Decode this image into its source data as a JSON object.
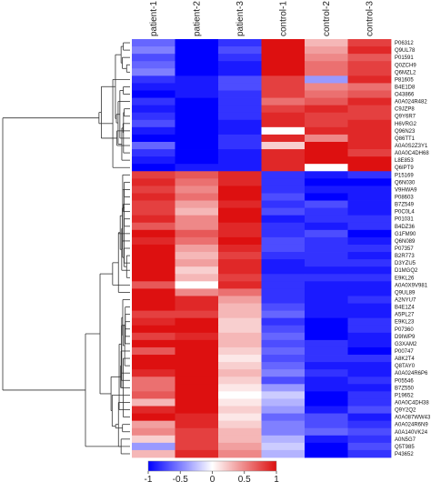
{
  "chart_data": {
    "type": "heatmap",
    "columns": [
      "patient-1",
      "patient-2",
      "patient-3",
      "control-1",
      "control-2",
      "control-3"
    ],
    "rows": [
      "P06312",
      "Q9UL78",
      "P01591",
      "Q0ZCH9",
      "Q6MZL2",
      "P81605",
      "B4E1D8",
      "O43866",
      "A0A024R482",
      "C9JZP8",
      "Q9Y6R7",
      "H6VRG2",
      "Q96N23",
      "Q86TT1",
      "A0A0S2Z3Y1",
      "A0A0C4DH68",
      "L8E853",
      "Q6IPT9",
      "P15169",
      "Q6N030",
      "V9HWA9",
      "P08603",
      "B7Z549",
      "P0C0L4",
      "P01031",
      "B4DZ36",
      "G1FM90",
      "Q6N089",
      "P07357",
      "B2R773",
      "D3YZU5",
      "D1MGQ2",
      "E9KL26",
      "A0A0X9V981",
      "Q9UL89",
      "A2NYU7",
      "B4E1Z4",
      "A5PL27",
      "E9KL23",
      "P07360",
      "D9IWP9",
      "G3XAM2",
      "P00747",
      "A8K2T4",
      "Q8TAY0",
      "A0A024R6P6",
      "P05546",
      "B7Z550",
      "P19652",
      "A0A0C4DH38",
      "Q9Y2Q2",
      "A0A087WW43",
      "A0A024R6N9",
      "A0A140VK24",
      "A0N5G7",
      "Q5T985",
      "P43652"
    ],
    "values": [
      [
        -0.6,
        -1.0,
        -0.8,
        1.0,
        0.3,
        0.8
      ],
      [
        -0.5,
        -1.0,
        -0.7,
        1.0,
        0.4,
        0.9
      ],
      [
        -0.7,
        -1.0,
        -0.8,
        1.0,
        0.5,
        0.7
      ],
      [
        -0.6,
        -1.0,
        -0.9,
        1.0,
        0.6,
        0.8
      ],
      [
        -0.5,
        -1.0,
        -0.9,
        1.0,
        0.6,
        0.8
      ],
      [
        -0.8,
        -0.9,
        -0.7,
        0.8,
        -0.4,
        0.9
      ],
      [
        -0.9,
        -0.9,
        -0.7,
        0.8,
        0.5,
        0.6
      ],
      [
        -1.0,
        -0.9,
        -0.8,
        0.8,
        0.6,
        0.7
      ],
      [
        -0.8,
        -1.0,
        -0.8,
        0.6,
        0.7,
        0.9
      ],
      [
        -0.9,
        -1.0,
        -0.8,
        0.8,
        0.9,
        0.8
      ],
      [
        -0.8,
        -1.0,
        -0.8,
        0.9,
        0.8,
        0.8
      ],
      [
        -0.7,
        -1.0,
        -0.9,
        0.9,
        0.8,
        0.9
      ],
      [
        -0.9,
        -1.0,
        -0.9,
        0.0,
        0.9,
        0.9
      ],
      [
        -1.0,
        -1.0,
        -0.8,
        0.9,
        0.5,
        0.9
      ],
      [
        -0.6,
        -1.0,
        -0.8,
        0.2,
        1.0,
        0.9
      ],
      [
        -0.8,
        -1.0,
        -0.9,
        0.9,
        1.0,
        0.8
      ],
      [
        -0.9,
        -1.0,
        -0.9,
        0.9,
        1.0,
        1.0
      ],
      [
        -1.0,
        -0.9,
        -0.9,
        0.9,
        0.0,
        1.0
      ],
      [
        0.8,
        0.7,
        0.9,
        -0.8,
        -0.9,
        -0.8
      ],
      [
        0.9,
        0.6,
        0.9,
        -0.8,
        -1.0,
        -1.0
      ],
      [
        0.8,
        0.5,
        1.0,
        -0.8,
        -0.9,
        -0.9
      ],
      [
        0.9,
        0.6,
        1.0,
        -0.7,
        -1.0,
        -0.9
      ],
      [
        0.8,
        0.4,
        0.9,
        -0.8,
        -0.7,
        -0.9
      ],
      [
        0.8,
        0.3,
        1.0,
        -0.7,
        -0.8,
        -0.9
      ],
      [
        0.9,
        0.5,
        1.0,
        -0.9,
        -0.8,
        -0.8
      ],
      [
        0.7,
        0.5,
        0.9,
        -0.8,
        -0.9,
        -0.8
      ],
      [
        1.0,
        0.7,
        0.9,
        -0.8,
        -0.7,
        -1.0
      ],
      [
        0.9,
        0.6,
        1.0,
        -0.7,
        -0.8,
        -0.9
      ],
      [
        1.0,
        0.4,
        0.9,
        -0.7,
        -0.8,
        -0.8
      ],
      [
        1.0,
        0.3,
        0.8,
        -0.8,
        -0.8,
        -0.9
      ],
      [
        1.0,
        0.4,
        0.9,
        -0.9,
        -0.8,
        -0.8
      ],
      [
        1.0,
        0.2,
        0.9,
        -0.9,
        -0.9,
        -0.9
      ],
      [
        1.0,
        0.3,
        0.8,
        -0.8,
        -0.8,
        -0.8
      ],
      [
        0.7,
        0.0,
        0.9,
        -0.8,
        -0.9,
        -0.9
      ],
      [
        1.0,
        0.5,
        0.6,
        -0.8,
        -0.9,
        -0.9
      ],
      [
        1.0,
        0.9,
        0.4,
        -0.8,
        -0.9,
        -0.8
      ],
      [
        1.0,
        0.9,
        0.3,
        -0.7,
        -0.9,
        -0.9
      ],
      [
        0.8,
        0.8,
        0.3,
        -0.6,
        -0.9,
        -0.9
      ],
      [
        0.9,
        1.0,
        0.2,
        -0.8,
        -1.0,
        -0.8
      ],
      [
        1.0,
        1.0,
        0.2,
        -0.7,
        -1.0,
        -0.8
      ],
      [
        0.8,
        0.9,
        0.3,
        -0.6,
        -1.0,
        -0.9
      ],
      [
        1.0,
        1.0,
        0.3,
        -0.7,
        -0.8,
        -0.9
      ],
      [
        0.7,
        1.0,
        0.2,
        -0.6,
        -0.8,
        -1.0
      ],
      [
        1.0,
        1.0,
        0.1,
        -0.7,
        -0.8,
        -0.8
      ],
      [
        1.0,
        1.0,
        0.2,
        -0.6,
        -0.9,
        -0.9
      ],
      [
        0.9,
        1.0,
        0.3,
        -0.5,
        -0.8,
        -0.9
      ],
      [
        0.6,
        1.0,
        0.2,
        -0.7,
        -0.9,
        -0.8
      ],
      [
        0.6,
        1.0,
        0.1,
        -0.4,
        -0.9,
        -0.9
      ],
      [
        0.7,
        1.0,
        0.0,
        -0.2,
        -1.0,
        -0.8
      ],
      [
        0.3,
        1.0,
        0.1,
        -0.3,
        -1.0,
        -0.8
      ],
      [
        0.9,
        1.0,
        0.2,
        -0.4,
        -0.9,
        -0.7
      ],
      [
        1.0,
        0.9,
        0.1,
        -0.6,
        -0.7,
        -0.9
      ],
      [
        0.4,
        0.9,
        0.2,
        -0.5,
        -0.7,
        -0.8
      ],
      [
        0.5,
        0.8,
        0.3,
        -0.5,
        -0.6,
        -0.7
      ],
      [
        0.2,
        0.8,
        0.3,
        -0.3,
        -0.9,
        -0.8
      ],
      [
        -0.4,
        0.8,
        0.4,
        -0.2,
        -1.0,
        -0.7
      ],
      [
        0.3,
        0.9,
        0.5,
        -0.3,
        -1.0,
        -0.8
      ]
    ],
    "colorbar": {
      "ticks": [
        -1,
        -0.5,
        0,
        0.5,
        1
      ],
      "tick_labels": [
        "-1",
        "-0.5",
        "0",
        "0.5",
        "1"
      ],
      "range": [
        -1,
        1
      ]
    },
    "colors": {
      "low": "#0000ff",
      "mid": "#ffffff",
      "high": "#dd1010"
    },
    "row_dendrogram": true
  }
}
